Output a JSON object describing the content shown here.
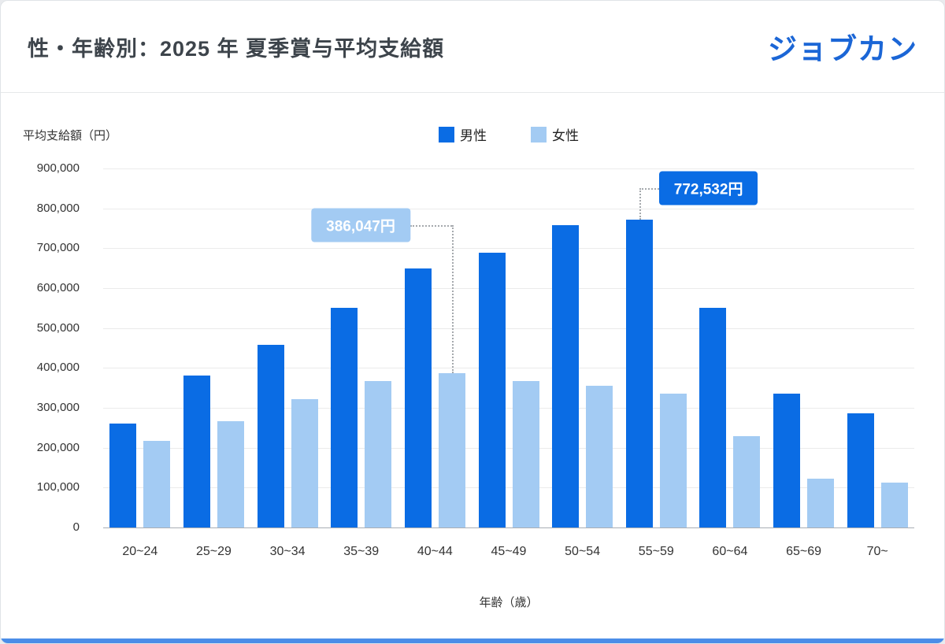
{
  "header": {
    "title": "性・年齢別：2025 年 夏季賞与平均支給額",
    "logo": "ジョブカン"
  },
  "colors": {
    "male": "#0a6ce4",
    "female": "#a3cbf3",
    "logo": "#1b66d6",
    "bottom_bar": "#4b8de8",
    "grid": "#ebebeb",
    "axis": "#a9aeb4",
    "connector": "#a5a9ad"
  },
  "chart_data": {
    "type": "bar",
    "title": "性・年齢別：2025 年 夏季賞与平均支給額",
    "ylabel": "平均支給額（円）",
    "xlabel": "年齢（歳）",
    "categories": [
      "20~24",
      "25~29",
      "30~34",
      "35~39",
      "40~44",
      "45~49",
      "50~54",
      "55~59",
      "60~64",
      "65~69",
      "70~"
    ],
    "yticks": [
      "0",
      "100,000",
      "200,000",
      "300,000",
      "400,000",
      "500,000",
      "600,000",
      "700,000",
      "800,000",
      "900,000"
    ],
    "ylim": [
      0,
      900000
    ],
    "grid": true,
    "legend_position": "top",
    "series": [
      {
        "name": "男性",
        "color": "#0a6ce4",
        "values": [
          260000,
          380000,
          457000,
          550000,
          650000,
          688000,
          757000,
          772532,
          551000,
          335000,
          287000
        ]
      },
      {
        "name": "女性",
        "color": "#a3cbf3",
        "values": [
          218000,
          266000,
          322000,
          368000,
          386047,
          368000,
          356000,
          336000,
          228000,
          122000,
          113000
        ]
      }
    ],
    "annotations": [
      {
        "text": "386,047円",
        "series": "女性",
        "category": "40~44",
        "value": 386047
      },
      {
        "text": "772,532円",
        "series": "男性",
        "category": "55~59",
        "value": 772532
      }
    ]
  }
}
